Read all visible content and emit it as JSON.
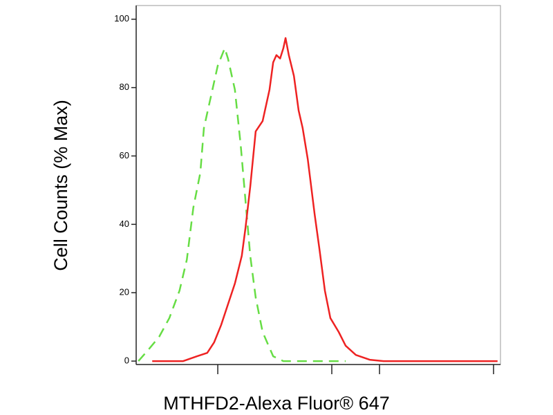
{
  "chart_data": {
    "type": "line",
    "x_label": "MTHFD2-Alexa Fluor® 647",
    "y_label": "Cell Counts (% Max)",
    "xlim": [
      0,
      100
    ],
    "xticks": [
      22.4,
      53.7,
      66.8,
      98.1
    ],
    "ylim": [
      -1,
      104
    ],
    "yticks": [
      0,
      20,
      40,
      60,
      80,
      100
    ],
    "series": [
      {
        "color": "#66dd44",
        "dash": true,
        "x": [
          0.6,
          3.4,
          6.3,
          9.1,
          11.9,
          13.9,
          15.7,
          17.6,
          18.6,
          20.5,
          22.4,
          24.3,
          25.2,
          27.1,
          28.7,
          30.0,
          31.3,
          32.8,
          34.7,
          37.6,
          40.4,
          46.1,
          57.5
        ],
        "values": [
          0,
          3.4,
          7.1,
          12.6,
          20.6,
          29.7,
          44.9,
          55.1,
          68.2,
          77.3,
          86.4,
          91.5,
          88.5,
          79.4,
          63.2,
          47.0,
          30.8,
          18.6,
          8.5,
          1.4,
          0,
          0,
          0
        ]
      },
      {
        "color": "#ee2222",
        "dash": false,
        "x": [
          4.4,
          8.2,
          12.9,
          16.7,
          19.5,
          21.4,
          23.3,
          25.2,
          27.1,
          29.0,
          30.0,
          31.3,
          32.8,
          34.7,
          36.6,
          37.6,
          38.5,
          39.5,
          40.4,
          41.0,
          41.9,
          43.3,
          44.6,
          45.7,
          47.1,
          49.0,
          50.3,
          51.8,
          53.3,
          55.6,
          57.5,
          60.3,
          64.1,
          67.9,
          76.5,
          99.2
        ],
        "values": [
          0,
          0,
          0,
          1.4,
          2.4,
          5.5,
          10.5,
          16.6,
          22.7,
          30.8,
          38.9,
          51.0,
          67.2,
          70.2,
          79.4,
          87.4,
          89.5,
          88.5,
          91.5,
          94.5,
          89.5,
          83.4,
          73.3,
          68.2,
          59.1,
          42.9,
          32.8,
          20.6,
          12.6,
          8.5,
          4.5,
          1.8,
          0.4,
          0,
          0,
          0
        ]
      }
    ]
  }
}
